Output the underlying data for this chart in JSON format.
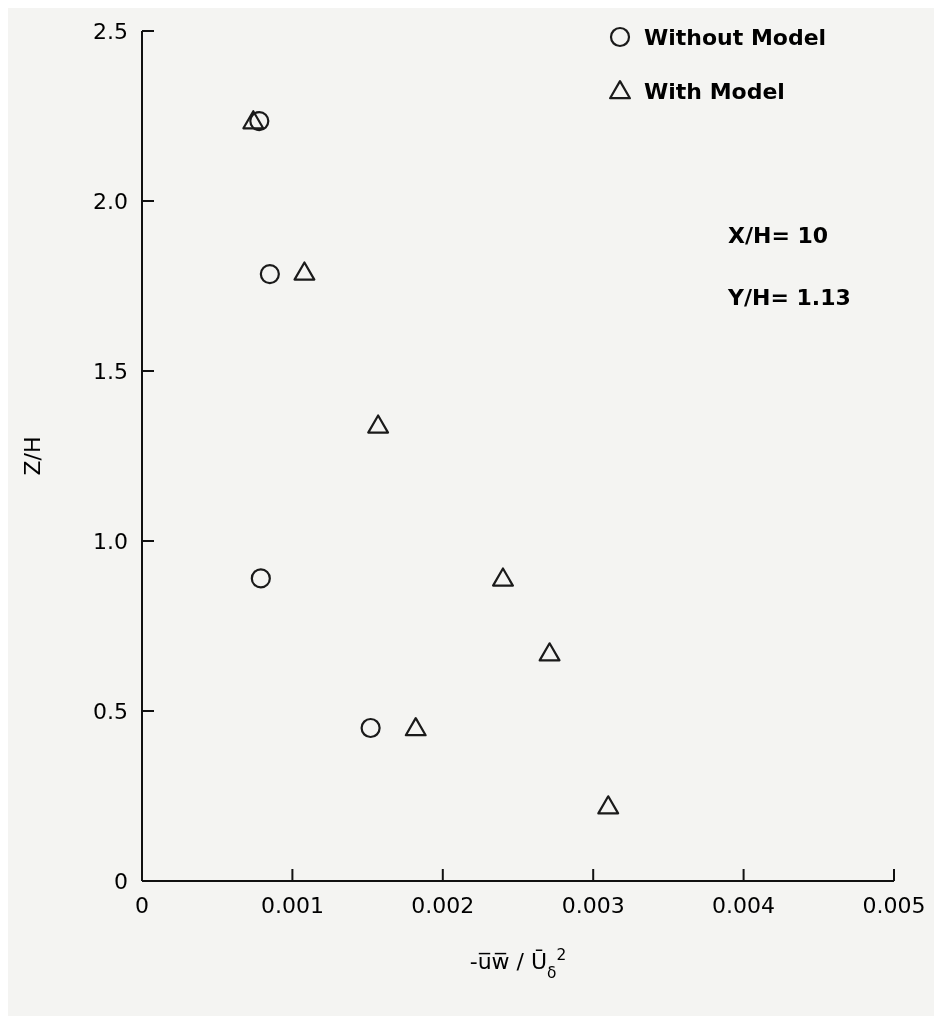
{
  "chart_data": {
    "type": "scatter",
    "xlabel": "-u̅w̅ / Ū$_{δ}$$^{2}$",
    "ylabel": "Z/H",
    "xlim": [
      0,
      0.005
    ],
    "xticks": [
      0,
      0.001,
      0.002,
      0.003,
      0.004,
      0.005
    ],
    "ylim": [
      0,
      2.5
    ],
    "yticks": [
      {
        "value": 0,
        "label": "0"
      },
      0.5,
      {
        "value": 1,
        "label": "1.0"
      },
      1.5,
      {
        "value": 2,
        "label": "2.0"
      },
      2.5
    ],
    "grid": false,
    "legend": "top right",
    "annotations": [
      "X/H= 10",
      "Y/H= 1.13"
    ],
    "series": [
      {
        "name": "Without Model",
        "color": "#1a1a1a",
        "marker": "circle",
        "x": [
          0.00078,
          0.00085,
          0.00079,
          0.00152
        ],
        "values": [
          2.235,
          1.785,
          0.89,
          0.45
        ]
      },
      {
        "name": "With Model",
        "color": "#1a1a1a",
        "marker": "triangle",
        "x": [
          0.00074,
          0.00108,
          0.00157,
          0.0024,
          0.00271,
          0.00182,
          0.0031
        ],
        "values": [
          2.235,
          1.79,
          1.34,
          0.89,
          0.67,
          0.45,
          0.22
        ]
      }
    ]
  }
}
